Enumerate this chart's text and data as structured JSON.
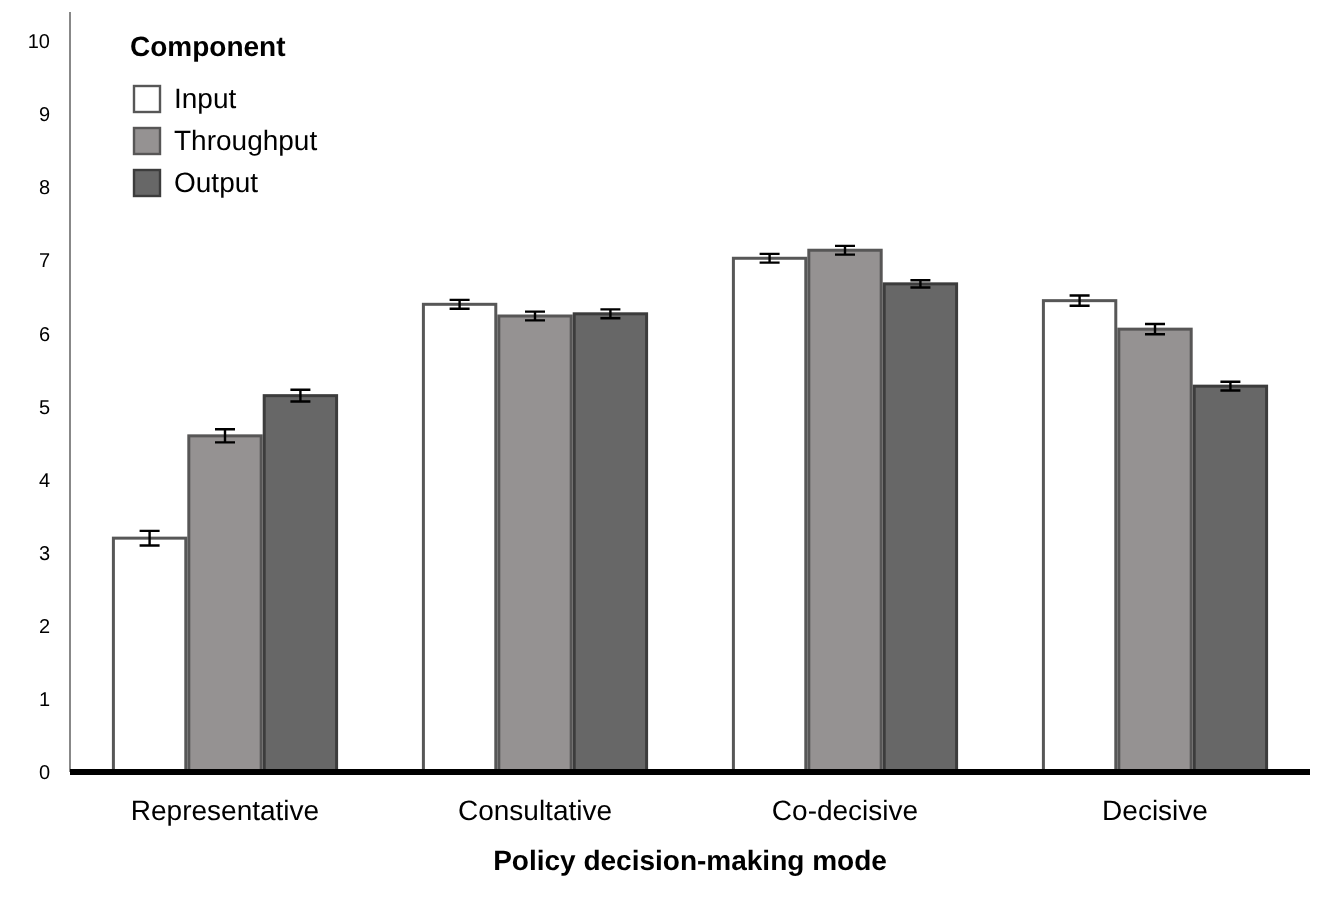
{
  "chart_data": {
    "type": "bar",
    "xlabel": "Policy decision-making mode",
    "legend_title": "Component",
    "categories": [
      "Representative",
      "Consultative",
      "Co-decisive",
      "Decisive"
    ],
    "series": [
      {
        "name": "Input",
        "color": "#ffffff",
        "values": [
          3.2,
          6.4,
          7.03,
          6.45
        ],
        "errors": [
          0.1,
          0.06,
          0.06,
          0.07
        ]
      },
      {
        "name": "Throughput",
        "color": "#959292",
        "values": [
          4.6,
          6.24,
          7.14,
          6.06
        ],
        "errors": [
          0.09,
          0.06,
          0.06,
          0.07
        ]
      },
      {
        "name": "Output",
        "color": "#676767",
        "values": [
          5.15,
          6.27,
          6.68,
          5.28
        ],
        "errors": [
          0.08,
          0.06,
          0.05,
          0.06
        ]
      }
    ],
    "ylim": [
      0,
      10.4
    ],
    "yticks": [
      0,
      1,
      2,
      3,
      4,
      5,
      6,
      7,
      8,
      9,
      10
    ],
    "grid": false,
    "legend": "top left"
  }
}
